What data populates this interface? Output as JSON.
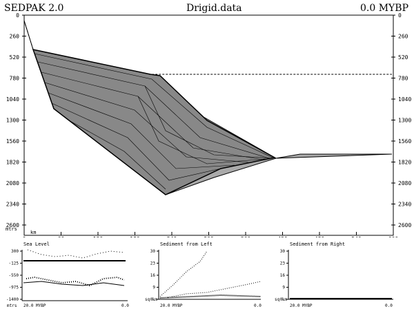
{
  "header": {
    "app_title": "SEDPAK 2.0",
    "file_name": "Drigid.data",
    "time": "0.0 MYBP"
  },
  "main": {
    "y_ticks": [
      "0",
      "260",
      "520",
      "780",
      "1040",
      "1300",
      "1560",
      "1820",
      "2080",
      "2340",
      "2600"
    ],
    "y_unit": "mtrs",
    "x_ticks": [
      "0",
      "60",
      "120",
      "180",
      "240",
      "300",
      "360",
      "420",
      "480",
      "540",
      "600"
    ],
    "x_unit": "km"
  },
  "panels": {
    "sea_level": {
      "title": "Sea Level",
      "y_ticks": [
        "300",
        "-125",
        "-550",
        "-975",
        "-1400"
      ],
      "y_unit": "mtrs",
      "x_start": "20.0 MYBP",
      "x_end": "0.0"
    },
    "sed_left": {
      "title": "Sediment from Left",
      "y_ticks": [
        "30",
        "23",
        "16",
        "9",
        "0."
      ],
      "y_unit": "sq km",
      "x_start": "20.0 MYBP",
      "x_end": "0.0"
    },
    "sed_right": {
      "title": "Sediment from Right",
      "y_ticks": [
        "30",
        "23",
        "16",
        "9",
        "0."
      ],
      "y_unit": "sq km",
      "x_start": "20.0 MYBP",
      "x_end": "0.0"
    }
  }
}
